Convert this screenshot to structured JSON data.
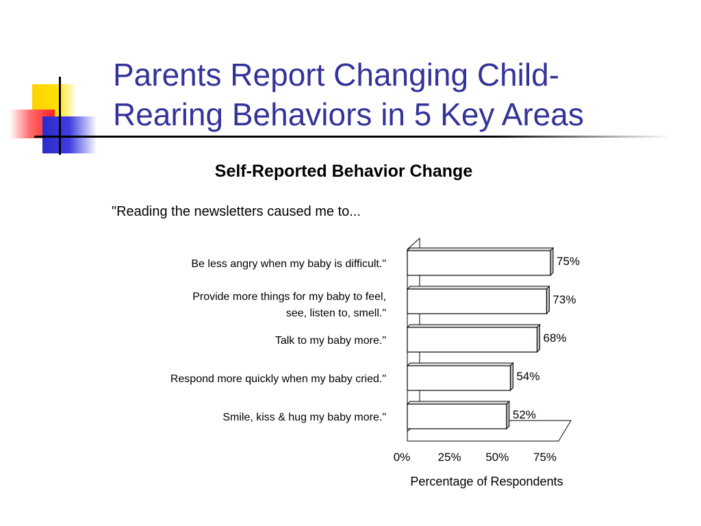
{
  "slide": {
    "title_lines": [
      "Parents Report Changing Child-",
      "Rearing Behaviors in 5 Key Areas"
    ]
  },
  "chart_data": {
    "type": "bar",
    "orientation": "horizontal",
    "title": "Self-Reported Behavior Change",
    "subtitle": "\"Reading the newsletters caused me to...",
    "categories": [
      "Be less angry when my baby is difficult.\"",
      "Provide more things for my baby to feel,\nsee, listen to, smell.\"",
      "Talk to my baby more.\"",
      "Respond more quickly when my baby cried.\"",
      "Smile, kiss & hug my baby more.\""
    ],
    "values": [
      75,
      73,
      68,
      54,
      52
    ],
    "data_labels": [
      "75%",
      "73%",
      "68%",
      "54%",
      "52%"
    ],
    "xlabel": "Percentage of Respondents",
    "xlim": [
      0,
      75
    ],
    "x_ticks": [
      0,
      25,
      50,
      75
    ],
    "x_tick_labels": [
      "0%",
      "25%",
      "50%",
      "75%"
    ],
    "grid": false,
    "bar_style": "3d"
  },
  "colors": {
    "title": "#333399",
    "bar_fill": "#ffffff",
    "bar_outline": "#000000",
    "bar_side": "#bdbdbd"
  }
}
